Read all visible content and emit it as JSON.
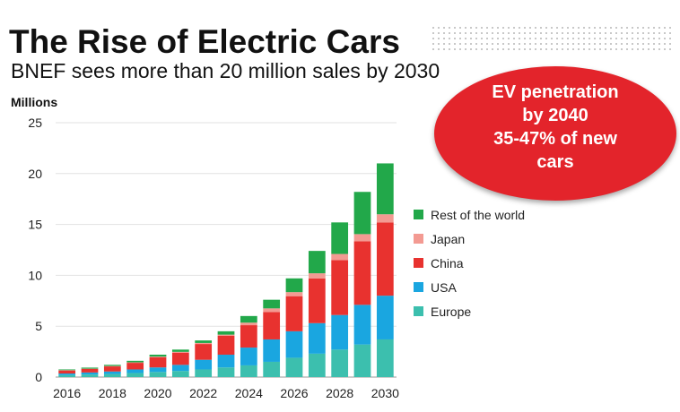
{
  "title": "The Rise of Electric Cars",
  "subtitle": "BNEF sees more than 20 million sales by 2030",
  "callout": {
    "lines": [
      "EV penetration",
      "by 2040",
      "35-47% of new",
      "cars"
    ],
    "color": "#e3242b"
  },
  "chart_data": {
    "type": "bar",
    "stacked": true,
    "ylabel": "Millions",
    "ylim": [
      0,
      25
    ],
    "yticks": [
      "0",
      "5",
      "10",
      "15",
      "20",
      "25"
    ],
    "x": [
      2016,
      2017,
      2018,
      2019,
      2020,
      2021,
      2022,
      2023,
      2024,
      2025,
      2026,
      2027,
      2028,
      2029,
      2030
    ],
    "xtick_labels": [
      "2016",
      "2018",
      "2020",
      "2022",
      "2024",
      "2026",
      "2028",
      "2030"
    ],
    "legend_position": "right",
    "series": [
      {
        "name": "Europe",
        "color": "#3cbfae",
        "values": [
          0.2,
          0.25,
          0.3,
          0.4,
          0.5,
          0.6,
          0.75,
          0.95,
          1.15,
          1.5,
          1.9,
          2.3,
          2.7,
          3.2,
          3.7
        ]
      },
      {
        "name": "USA",
        "color": "#1aa6e0",
        "values": [
          0.15,
          0.2,
          0.25,
          0.35,
          0.45,
          0.6,
          0.95,
          1.25,
          1.75,
          2.2,
          2.6,
          3.0,
          3.4,
          3.9,
          4.3
        ]
      },
      {
        "name": "China",
        "color": "#e8322f",
        "values": [
          0.3,
          0.35,
          0.5,
          0.65,
          1.0,
          1.2,
          1.55,
          1.85,
          2.2,
          2.7,
          3.45,
          4.4,
          5.4,
          6.25,
          7.2
        ]
      },
      {
        "name": "Japan",
        "color": "#f39a92",
        "values": [
          0.03,
          0.03,
          0.04,
          0.05,
          0.06,
          0.08,
          0.1,
          0.12,
          0.25,
          0.35,
          0.4,
          0.5,
          0.6,
          0.7,
          0.8
        ]
      },
      {
        "name": "Rest of the world",
        "color": "#22a84a",
        "values": [
          0.07,
          0.1,
          0.11,
          0.15,
          0.19,
          0.22,
          0.25,
          0.33,
          0.65,
          0.85,
          1.35,
          2.2,
          3.1,
          4.15,
          5.0
        ]
      }
    ]
  }
}
